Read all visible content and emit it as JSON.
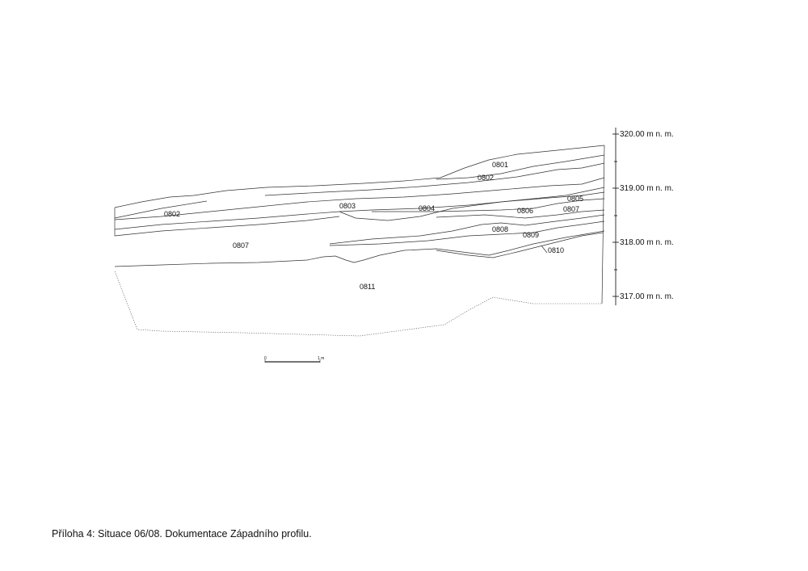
{
  "caption": "Příloha 4: Situace 06/08. Dokumentace Západního profilu.",
  "layers": [
    {
      "id": "l0801",
      "text": "0801"
    },
    {
      "id": "l0802a",
      "text": "0802"
    },
    {
      "id": "l0802b",
      "text": "0802"
    },
    {
      "id": "l0803",
      "text": "0803"
    },
    {
      "id": "l0804",
      "text": "0804"
    },
    {
      "id": "l0805",
      "text": "0805"
    },
    {
      "id": "l0806",
      "text": "0806"
    },
    {
      "id": "l0807a",
      "text": "0807"
    },
    {
      "id": "l0807b",
      "text": "0807"
    },
    {
      "id": "l0808",
      "text": "0808"
    },
    {
      "id": "l0809",
      "text": "0809"
    },
    {
      "id": "l0810",
      "text": "0810"
    },
    {
      "id": "l0811",
      "text": "0811"
    }
  ],
  "elevations": [
    "320.00 m n. m.",
    "319.00 m n. m.",
    "318.00 m n. m.",
    "317.00 m n. m."
  ],
  "scale_bar": {
    "start": "0",
    "end": "1 m"
  }
}
